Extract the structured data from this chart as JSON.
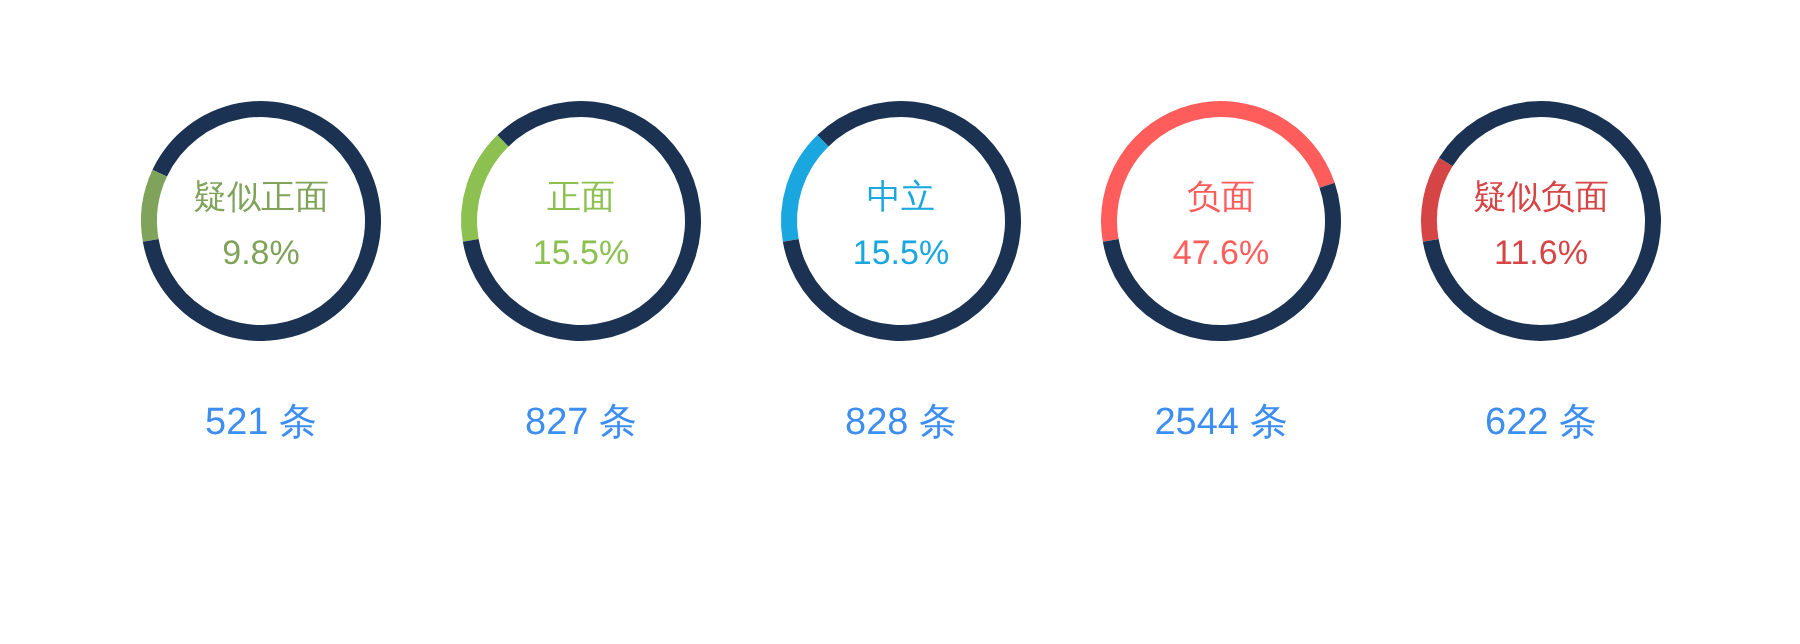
{
  "chart_data": [
    {
      "type": "donut",
      "title": "疑似正面",
      "subtitle": "9.8%",
      "categories": [
        null,
        null
      ],
      "values": [
        9.8,
        90.2
      ],
      "colors": [
        "#7fa35a",
        "#1b3252"
      ],
      "annotations": [
        "521 条"
      ]
    },
    {
      "type": "donut",
      "title": "正面",
      "subtitle": "15.5%",
      "categories": [
        null,
        null
      ],
      "values": [
        15.5,
        84.5
      ],
      "colors": [
        "#8cc152",
        "#1b3252"
      ],
      "annotations": [
        "827 条"
      ]
    },
    {
      "type": "donut",
      "title": "中立",
      "subtitle": "15.5%",
      "categories": [
        null,
        null
      ],
      "values": [
        15.5,
        84.5
      ],
      "colors": [
        "#1aa7e0",
        "#1b3252"
      ],
      "annotations": [
        "828 条"
      ]
    },
    {
      "type": "donut",
      "title": "负面",
      "subtitle": "47.6%",
      "categories": [
        null,
        null
      ],
      "values": [
        47.6,
        52.4
      ],
      "colors": [
        "#ff5c5c",
        "#1b3252"
      ],
      "annotations": [
        "2544 条"
      ]
    },
    {
      "type": "donut",
      "title": "疑似负面",
      "subtitle": "11.6%",
      "categories": [
        null,
        null
      ],
      "values": [
        11.6,
        88.4
      ],
      "colors": [
        "#d64545",
        "#1b3252"
      ],
      "annotations": [
        "622 条"
      ]
    }
  ]
}
